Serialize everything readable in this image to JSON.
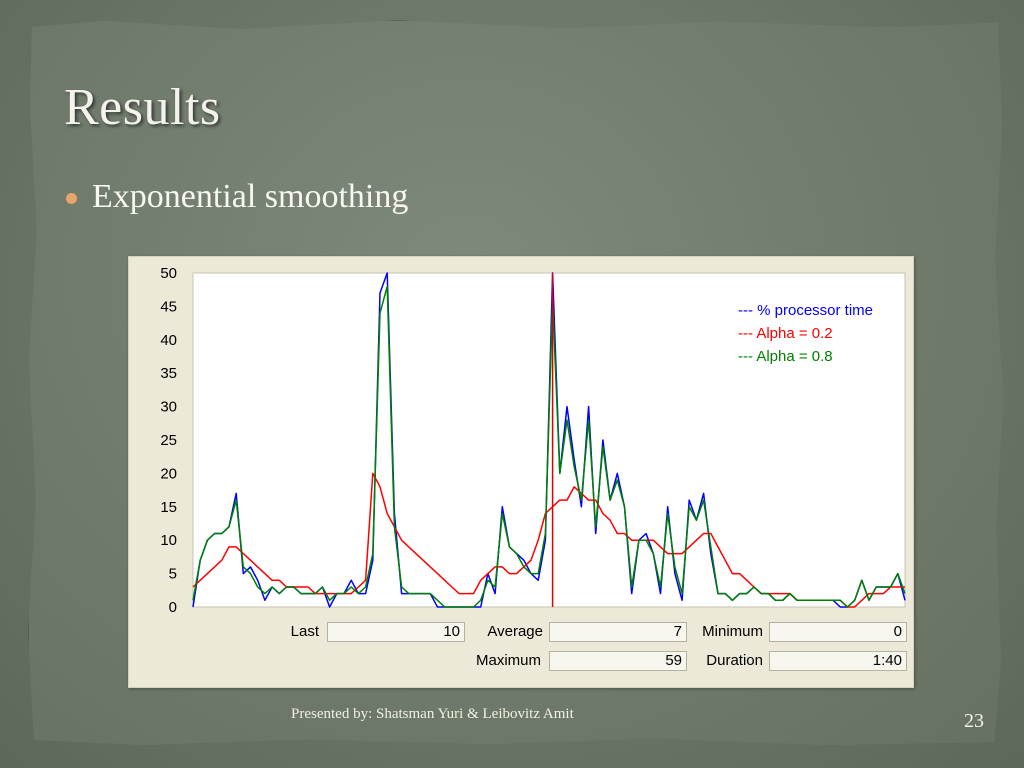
{
  "slide": {
    "title": "Results",
    "bullet": "Exponential smoothing",
    "footer": "Presented by: Shatsman Yuri & Leibovitz Amit",
    "page_number": "23"
  },
  "stats": {
    "last_label": "Last",
    "last_value": "10",
    "average_label": "Average",
    "average_value": "7",
    "minimum_label": "Minimum",
    "minimum_value": "0",
    "maximum_label": "Maximum",
    "maximum_value": "59",
    "duration_label": "Duration",
    "duration_value": "1:40"
  },
  "colors": {
    "processor": "#0000ff",
    "alpha02": "#ff0000",
    "alpha08": "#008000",
    "marker": "#e00000"
  },
  "chart_data": {
    "type": "line",
    "title": "",
    "xlabel": "",
    "ylabel": "",
    "ylim": [
      0,
      50
    ],
    "yticks": [
      0,
      5,
      10,
      15,
      20,
      25,
      30,
      35,
      40,
      45,
      50
    ],
    "x_count": 100,
    "current_marker_index": 50,
    "legend_position": "top-right",
    "series": [
      {
        "name": "--- % processor time",
        "color": "#0000ff",
        "values": [
          0,
          7,
          10,
          11,
          11,
          12,
          17,
          5,
          6,
          4,
          1,
          3,
          2,
          3,
          3,
          2,
          2,
          2,
          3,
          0,
          2,
          2,
          4,
          2,
          2,
          7,
          47,
          50,
          14,
          2,
          2,
          2,
          2,
          2,
          0,
          0,
          0,
          0,
          0,
          0,
          0,
          5,
          2,
          15,
          9,
          8,
          7,
          5,
          4,
          10,
          50,
          20,
          30,
          22,
          15,
          30,
          11,
          25,
          16,
          20,
          15,
          2,
          10,
          11,
          8,
          2,
          15,
          5,
          1,
          16,
          13,
          17,
          8,
          2,
          2,
          1,
          2,
          2,
          3,
          2,
          2,
          1,
          1,
          2,
          1,
          1,
          1,
          1,
          1,
          1,
          0,
          0,
          1,
          4,
          1,
          3,
          3,
          3,
          5,
          1
        ]
      },
      {
        "name": "--- Alpha = 0.2",
        "color": "#ff0000",
        "values": [
          3,
          4,
          5,
          6,
          7,
          9,
          9,
          8,
          7,
          6,
          5,
          4,
          4,
          3,
          3,
          3,
          3,
          2,
          2,
          2,
          2,
          2,
          2,
          3,
          4,
          20,
          18,
          14,
          12,
          10,
          9,
          8,
          7,
          6,
          5,
          4,
          3,
          2,
          2,
          2,
          4,
          5,
          6,
          6,
          5,
          5,
          6,
          7,
          10,
          14,
          15,
          16,
          16,
          18,
          17,
          16,
          16,
          14,
          13,
          11,
          11,
          10,
          10,
          10,
          10,
          9,
          8,
          8,
          8,
          9,
          10,
          11,
          11,
          9,
          7,
          5,
          5,
          4,
          3,
          2,
          2,
          2,
          2,
          2,
          1,
          1,
          1,
          1,
          1,
          1,
          1,
          0,
          0,
          1,
          2,
          2,
          2,
          3,
          3,
          3
        ]
      },
      {
        "name": "--- Alpha = 0.8",
        "color": "#008000",
        "values": [
          1,
          7,
          10,
          11,
          11,
          12,
          16,
          6,
          5,
          3,
          2,
          3,
          2,
          3,
          3,
          2,
          2,
          2,
          3,
          1,
          2,
          2,
          3,
          2,
          3,
          8,
          44,
          48,
          12,
          3,
          2,
          2,
          2,
          2,
          1,
          0,
          0,
          0,
          0,
          0,
          1,
          4,
          3,
          14,
          9,
          8,
          6,
          5,
          5,
          11,
          46,
          20,
          28,
          21,
          16,
          28,
          12,
          24,
          16,
          19,
          15,
          3,
          10,
          10,
          8,
          3,
          14,
          6,
          2,
          15,
          13,
          16,
          9,
          2,
          2,
          1,
          2,
          2,
          3,
          2,
          2,
          1,
          1,
          2,
          1,
          1,
          1,
          1,
          1,
          1,
          1,
          0,
          1,
          4,
          1,
          3,
          3,
          3,
          5,
          2
        ]
      }
    ]
  }
}
